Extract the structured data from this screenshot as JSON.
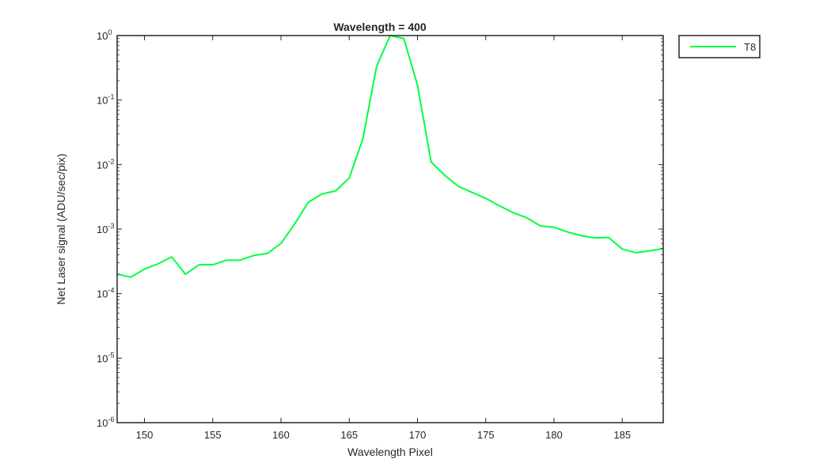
{
  "chart_data": {
    "type": "line",
    "title": "Wavelength = 400",
    "xlabel": "Wavelength Pixel",
    "ylabel": "Net Laser signal  (ADU/sec/pix)",
    "xlim": [
      148,
      188
    ],
    "ylim": [
      1e-06,
      1
    ],
    "yscale": "log",
    "xticks": [
      150,
      155,
      160,
      165,
      170,
      175,
      180,
      185
    ],
    "xtick_labels": [
      "150",
      "155",
      "160",
      "165",
      "170",
      "175",
      "180",
      "185"
    ],
    "yticks": [
      {
        "base": "10",
        "exp": "0"
      },
      {
        "base": "10",
        "exp": "-1"
      },
      {
        "base": "10",
        "exp": "-2"
      },
      {
        "base": "10",
        "exp": "-3"
      },
      {
        "base": "10",
        "exp": "-4"
      },
      {
        "base": "10",
        "exp": "-5"
      },
      {
        "base": "10",
        "exp": "-6"
      }
    ],
    "grid": false,
    "legend_position": "outside-top-right",
    "series": [
      {
        "name": "T8",
        "color": "#00ff40",
        "x": [
          148,
          149,
          150,
          151,
          152,
          153,
          154,
          155,
          156,
          157,
          158,
          159,
          160,
          161,
          162,
          163,
          164,
          165,
          166,
          167,
          168,
          169,
          170,
          171,
          172,
          173,
          174,
          175,
          176,
          177,
          178,
          179,
          180,
          181,
          182,
          183,
          184,
          185,
          186,
          187,
          188
        ],
        "y": [
          0.0002,
          0.00018,
          0.00024,
          0.00029,
          0.00037,
          0.0002,
          0.00028,
          0.00028,
          0.00033,
          0.00033,
          0.00039,
          0.00042,
          0.0006,
          0.0012,
          0.0026,
          0.0035,
          0.0039,
          0.0062,
          0.025,
          0.33,
          1.0,
          0.9,
          0.17,
          0.011,
          0.0068,
          0.0046,
          0.0037,
          0.003,
          0.0023,
          0.0018,
          0.0015,
          0.00112,
          0.00107,
          0.0009,
          0.00079,
          0.00073,
          0.00074,
          0.00049,
          0.00043,
          0.00046,
          0.0005
        ]
      }
    ]
  }
}
